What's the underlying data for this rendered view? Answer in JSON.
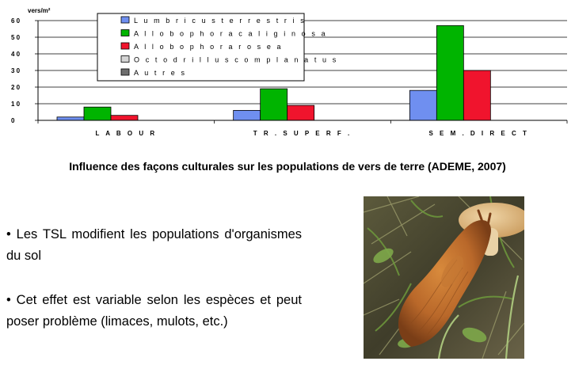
{
  "chart_data": {
    "type": "bar",
    "unit_label": "vers/m²",
    "categories": [
      "L A B O U R",
      "T R .  S U P E R F .",
      "S E M .  D I R E C T"
    ],
    "yticks": [
      "0",
      "1 0",
      "2 0",
      "3 0",
      "4 0",
      "5 0",
      "6 0"
    ],
    "ylim": [
      0,
      60
    ],
    "grid": true,
    "legend_position": "top-center",
    "series": [
      {
        "name": "L u m b r i c u s   t e r r e s t r i s",
        "color": "#6f8ff0",
        "values": [
          2,
          6,
          18
        ]
      },
      {
        "name": "A l l o b o p h o r a   c a l i g i n o s a",
        "color": "#00b400",
        "values": [
          8,
          19,
          57
        ]
      },
      {
        "name": "A l l o b o p h o r a   r o s e a",
        "color": "#f0142d",
        "values": [
          3,
          9,
          30
        ]
      },
      {
        "name": "O c t o d r i l l u s   c o m p l a n a t u s",
        "color": "#d4d4d4",
        "values": [
          0,
          0,
          0
        ]
      },
      {
        "name": "A u t r e s",
        "color": "#6e6e6e",
        "values": [
          0,
          0,
          0
        ]
      }
    ]
  },
  "caption": "Influence des façons culturales sur les populations de vers de terre (ADEME, 2007)",
  "paragraphs": [
    "• Les TSL modifient les populations d'organismes du sol",
    "• Cet effet est variable selon les espèces et peut poser problème (limaces, mulots, etc.)"
  ],
  "photo": {
    "subject": "slug on ground among grass and a mushroom"
  }
}
